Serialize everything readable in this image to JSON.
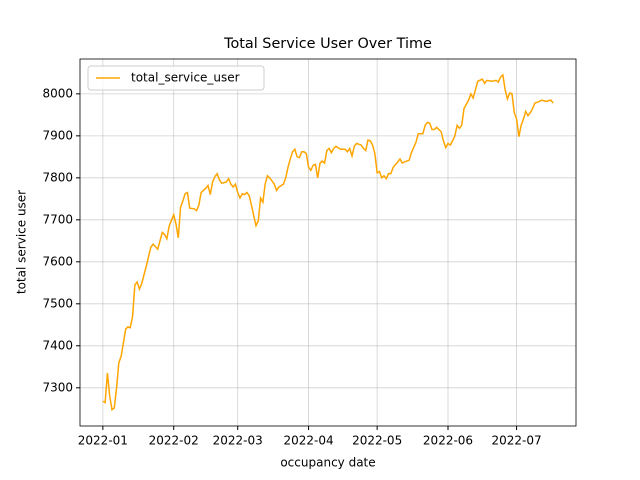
{
  "chart_data": {
    "type": "line",
    "title": "Total Service User Over Time",
    "x_label": "occupancy date",
    "y_label": "total service user",
    "x": [
      0,
      1,
      2,
      3,
      4,
      5,
      6,
      7,
      8,
      10,
      11,
      12,
      13,
      14,
      15,
      16,
      17,
      19,
      21,
      22,
      24,
      26,
      27,
      28,
      29,
      31,
      32,
      33,
      34,
      35,
      36,
      37,
      38,
      40,
      41,
      42,
      43,
      45,
      46,
      47,
      48,
      49,
      50,
      51,
      52,
      54,
      55,
      56,
      57,
      58,
      59,
      60,
      61,
      62,
      63,
      64,
      65,
      66,
      67,
      68,
      69,
      70,
      71,
      72,
      73,
      75,
      76,
      77,
      79,
      80,
      81,
      82,
      83,
      84,
      85,
      86,
      87,
      88,
      89,
      90,
      91,
      92,
      93,
      94,
      95,
      96,
      97,
      98,
      99,
      100,
      101,
      102,
      104,
      106,
      107,
      108,
      109,
      110,
      111,
      113,
      114,
      115,
      116,
      117,
      118,
      119,
      120,
      121,
      122,
      123,
      124,
      125,
      126,
      127,
      129,
      130,
      131,
      132,
      134,
      135,
      137,
      138,
      140,
      141,
      142,
      143,
      144,
      145,
      146,
      148,
      149,
      150,
      151,
      152,
      153,
      154,
      155,
      156,
      157,
      158,
      159,
      160,
      161,
      162,
      163,
      164,
      166,
      167,
      168,
      170,
      172,
      173,
      174,
      175,
      176,
      177,
      178,
      179,
      180,
      181,
      182,
      183,
      184,
      185,
      186,
      187,
      188,
      189,
      191,
      192,
      194,
      196,
      197
    ],
    "series": [
      {
        "name": "total_service_user",
        "color": "#ffa500",
        "values": [
          7268,
          7265,
          7335,
          7280,
          7248,
          7252,
          7300,
          7360,
          7375,
          7440,
          7445,
          7443,
          7470,
          7545,
          7552,
          7535,
          7548,
          7590,
          7635,
          7642,
          7630,
          7670,
          7665,
          7655,
          7685,
          7712,
          7690,
          7657,
          7730,
          7745,
          7762,
          7765,
          7728,
          7726,
          7722,
          7735,
          7765,
          7775,
          7782,
          7760,
          7790,
          7803,
          7810,
          7795,
          7787,
          7790,
          7798,
          7785,
          7778,
          7785,
          7765,
          7752,
          7762,
          7760,
          7765,
          7758,
          7735,
          7710,
          7686,
          7698,
          7752,
          7742,
          7785,
          7805,
          7800,
          7785,
          7770,
          7778,
          7785,
          7800,
          7825,
          7845,
          7862,
          7868,
          7850,
          7848,
          7862,
          7862,
          7858,
          7825,
          7818,
          7830,
          7832,
          7800,
          7835,
          7840,
          7835,
          7865,
          7870,
          7860,
          7870,
          7875,
          7868,
          7868,
          7862,
          7870,
          7852,
          7875,
          7882,
          7878,
          7870,
          7865,
          7890,
          7888,
          7878,
          7858,
          7812,
          7815,
          7800,
          7805,
          7798,
          7810,
          7810,
          7825,
          7838,
          7845,
          7835,
          7838,
          7842,
          7860,
          7885,
          7905,
          7905,
          7925,
          7932,
          7930,
          7915,
          7915,
          7920,
          7910,
          7888,
          7872,
          7882,
          7878,
          7888,
          7900,
          7925,
          7918,
          7925,
          7965,
          7975,
          7985,
          8000,
          7990,
          8010,
          8030,
          8035,
          8025,
          8032,
          8030,
          8032,
          8028,
          8040,
          8045,
          8010,
          7988,
          8002,
          8000,
          7955,
          7940,
          7898,
          7925,
          7940,
          7958,
          7948,
          7955,
          7965,
          7978,
          7982,
          7985,
          7982,
          7985,
          7978
        ]
      }
    ],
    "xlim": [
      -10,
      207
    ],
    "xticks": [
      {
        "value": 0,
        "label": "2022-01"
      },
      {
        "value": 31,
        "label": "2022-02"
      },
      {
        "value": 59,
        "label": "2022-03"
      },
      {
        "value": 90,
        "label": "2022-04"
      },
      {
        "value": 120,
        "label": "2022-05"
      },
      {
        "value": 151,
        "label": "2022-06"
      },
      {
        "value": 181,
        "label": "2022-07"
      }
    ],
    "ylim": [
      7209,
      8083
    ],
    "yticks": [
      7300,
      7400,
      7500,
      7600,
      7700,
      7800,
      7900,
      8000
    ],
    "grid": true,
    "legend_position": "upper-left"
  }
}
